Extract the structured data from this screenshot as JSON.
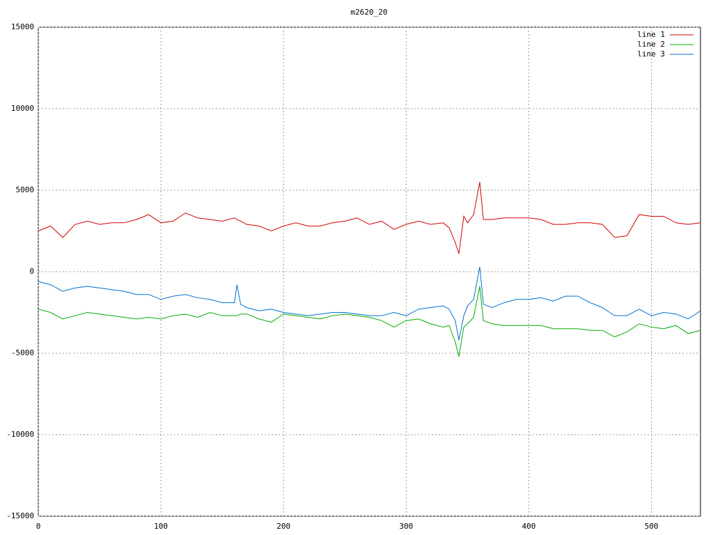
{
  "chart_data": {
    "type": "line",
    "title": "m2620_20",
    "x": [
      0,
      10,
      20,
      30,
      40,
      50,
      60,
      70,
      80,
      90,
      100,
      110,
      120,
      130,
      140,
      150,
      160,
      162,
      165,
      170,
      180,
      190,
      200,
      210,
      220,
      230,
      240,
      250,
      260,
      270,
      280,
      290,
      300,
      310,
      320,
      330,
      335,
      340,
      343,
      347,
      350,
      355,
      360,
      363,
      370,
      380,
      390,
      400,
      410,
      420,
      430,
      440,
      450,
      460,
      470,
      480,
      490,
      500,
      510,
      520,
      530,
      540
    ],
    "series": [
      {
        "name": "line 1",
        "color": "#d00000",
        "values": [
          2500,
          2800,
          2100,
          2900,
          3100,
          2900,
          3000,
          3000,
          3200,
          3500,
          3000,
          3100,
          3600,
          3300,
          3200,
          3100,
          3300,
          3200,
          3100,
          2900,
          2800,
          2500,
          2800,
          3000,
          2800,
          2800,
          3000,
          3100,
          3300,
          2900,
          3100,
          2600,
          2900,
          3100,
          2900,
          3000,
          2700,
          1800,
          1100,
          3400,
          3000,
          3500,
          5500,
          3200,
          3200,
          3300,
          3300,
          3300,
          3200,
          2900,
          2900,
          3000,
          3000,
          2900,
          2100,
          2200,
          3500,
          3400,
          3400,
          3000,
          2900,
          3000
        ]
      },
      {
        "name": "line 2",
        "color": "#00aa00",
        "values": [
          -2300,
          -2500,
          -2900,
          -2700,
          -2500,
          -2600,
          -2700,
          -2800,
          -2900,
          -2800,
          -2900,
          -2700,
          -2600,
          -2800,
          -2500,
          -2700,
          -2700,
          -2700,
          -2600,
          -2600,
          -2900,
          -3100,
          -2600,
          -2700,
          -2800,
          -2900,
          -2700,
          -2600,
          -2700,
          -2800,
          -3000,
          -3400,
          -3000,
          -2900,
          -3200,
          -3400,
          -3300,
          -4300,
          -5200,
          -3400,
          -3200,
          -2800,
          -900,
          -3000,
          -3200,
          -3300,
          -3300,
          -3300,
          -3300,
          -3500,
          -3500,
          -3500,
          -3600,
          -3600,
          -4000,
          -3700,
          -3200,
          -3400,
          -3500,
          -3300,
          -3800,
          -3600
        ]
      },
      {
        "name": "line 3",
        "color": "#0070d0",
        "values": [
          -600,
          -800,
          -1200,
          -1000,
          -900,
          -1000,
          -1100,
          -1200,
          -1400,
          -1400,
          -1700,
          -1500,
          -1400,
          -1600,
          -1700,
          -1900,
          -1900,
          -800,
          -2000,
          -2200,
          -2400,
          -2300,
          -2500,
          -2600,
          -2700,
          -2600,
          -2500,
          -2500,
          -2600,
          -2700,
          -2700,
          -2500,
          -2700,
          -2300,
          -2200,
          -2100,
          -2300,
          -3000,
          -4200,
          -2700,
          -2100,
          -1700,
          300,
          -2000,
          -2200,
          -1900,
          -1700,
          -1700,
          -1600,
          -1800,
          -1500,
          -1500,
          -1900,
          -2200,
          -2700,
          -2700,
          -2300,
          -2700,
          -2500,
          -2600,
          -2900,
          -2400
        ]
      }
    ],
    "xlim": [
      0,
      540
    ],
    "xticks": [
      0,
      100,
      200,
      300,
      400,
      500
    ],
    "ylim": [
      -15000,
      15000
    ],
    "yticks": [
      -15000,
      -10000,
      -5000,
      0,
      5000,
      10000,
      15000
    ],
    "grid": true,
    "legend": "top-right"
  }
}
